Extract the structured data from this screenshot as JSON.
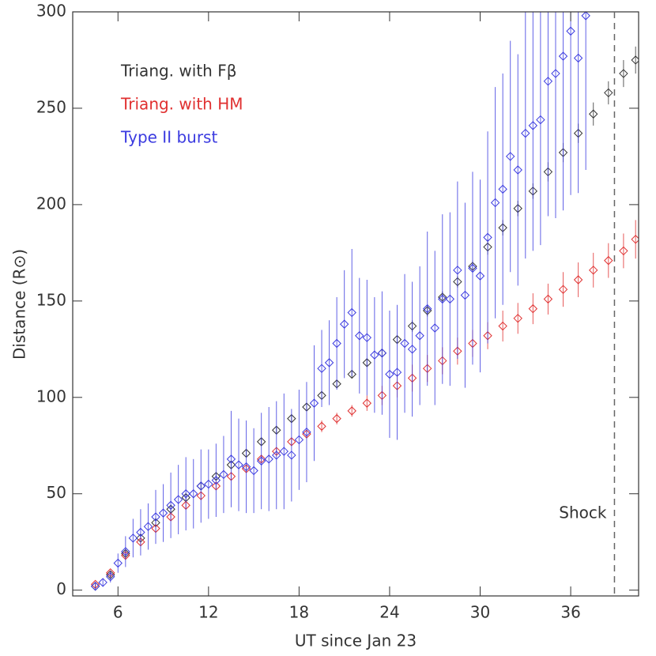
{
  "chart_data": {
    "type": "scatter",
    "xlabel": "UT since Jan 23",
    "ylabel": "Distance (R⊙)",
    "xlim": [
      3,
      40.5
    ],
    "ylim": [
      -3,
      300
    ],
    "xticks": [
      6,
      12,
      18,
      24,
      30,
      36
    ],
    "yticks": [
      0,
      50,
      100,
      150,
      200,
      250,
      300
    ],
    "annotation": {
      "text": "Shock",
      "x": 38.9
    },
    "series": [
      {
        "name": "Triang. with Fβ",
        "color": "#333333",
        "x": [
          4.5,
          5.5,
          6.5,
          7.5,
          8.5,
          9.5,
          10.5,
          11.5,
          12.5,
          13.5,
          14.5,
          15.5,
          16.5,
          17.5,
          18.5,
          19.5,
          20.5,
          21.5,
          22.5,
          23.5,
          24.5,
          25.5,
          26.5,
          27.5,
          28.5,
          29.5,
          30.5,
          31.5,
          32.5,
          33.5,
          34.5,
          35.5,
          36.5,
          37.5,
          38.5,
          39.5,
          40.3
        ],
        "values": [
          2,
          8,
          19,
          27,
          35,
          42,
          48,
          54,
          59,
          65,
          71,
          77,
          83,
          89,
          95,
          101,
          107,
          112,
          118,
          123,
          130,
          137,
          145,
          152,
          160,
          168,
          178,
          188,
          198,
          207,
          217,
          227,
          237,
          247,
          258,
          268,
          275
        ],
        "errors": [
          1,
          2,
          2,
          2,
          2,
          2,
          2,
          2,
          2,
          2,
          2,
          2,
          2,
          2,
          2,
          2,
          2,
          2,
          2,
          2,
          2,
          3,
          3,
          3,
          3,
          3,
          4,
          4,
          4,
          4,
          5,
          5,
          5,
          6,
          6,
          7,
          7
        ]
      },
      {
        "name": "Triang. with HM",
        "color": "#e03030",
        "x": [
          4.5,
          5.5,
          6.5,
          7.5,
          8.5,
          9.5,
          10.5,
          11.5,
          12.5,
          13.5,
          14.5,
          15.5,
          16.5,
          17.5,
          18.5,
          19.5,
          20.5,
          21.5,
          22.5,
          23.5,
          24.5,
          25.5,
          26.5,
          27.5,
          28.5,
          29.5,
          30.5,
          31.5,
          32.5,
          33.5,
          34.5,
          35.5,
          36.5,
          37.5,
          38.5,
          39.5,
          40.3
        ],
        "values": [
          3,
          9,
          18,
          25,
          32,
          38,
          44,
          49,
          54,
          59,
          63,
          68,
          72,
          77,
          81,
          85,
          89,
          93,
          97,
          101,
          106,
          110,
          115,
          119,
          124,
          128,
          132,
          137,
          141,
          146,
          151,
          156,
          161,
          166,
          171,
          176,
          182
        ],
        "errors": [
          1,
          1,
          2,
          2,
          2,
          2,
          2,
          2,
          2,
          2,
          2,
          2,
          2,
          2,
          2,
          3,
          3,
          3,
          4,
          5,
          6,
          7,
          7,
          7,
          7,
          7,
          7,
          8,
          8,
          8,
          8,
          9,
          9,
          9,
          9,
          9,
          10
        ]
      },
      {
        "name": "Type II burst",
        "color": "#3a3ae0",
        "x": [
          4.5,
          5,
          5.5,
          6,
          6.5,
          7,
          7.5,
          8,
          8.5,
          9,
          9.5,
          10,
          10.5,
          11,
          11.5,
          12,
          12.5,
          13,
          13.5,
          14,
          14.5,
          15,
          15.5,
          16,
          16.5,
          17,
          17.5,
          18,
          18.5,
          19,
          19.5,
          20,
          20.5,
          21,
          21.5,
          22,
          22.5,
          23,
          23.5,
          24,
          24.5,
          25,
          25.5,
          26,
          26.5,
          27,
          27.5,
          28,
          28.5,
          29,
          29.5,
          30,
          30.5,
          31,
          31.5,
          32,
          32.5,
          33,
          33.5,
          34,
          34.5,
          35,
          35.5,
          36,
          36.5,
          37
        ],
        "values": [
          2,
          4,
          7,
          14,
          20,
          27,
          30,
          33,
          38,
          40,
          44,
          47,
          50,
          50,
          54,
          55,
          57,
          60,
          68,
          65,
          64,
          62,
          67,
          68,
          70,
          72,
          70,
          78,
          82,
          97,
          115,
          118,
          128,
          138,
          144,
          132,
          131,
          122,
          123,
          112,
          113,
          128,
          125,
          132,
          146,
          136,
          151,
          151,
          166,
          153,
          167,
          163,
          183,
          201,
          208,
          225,
          218,
          237,
          241,
          244,
          264,
          268,
          277,
          290,
          276,
          298
        ],
        "errors": [
          2,
          2,
          3,
          5,
          8,
          10,
          12,
          12,
          14,
          15,
          17,
          18,
          19,
          18,
          19,
          18,
          19,
          20,
          25,
          24,
          24,
          22,
          25,
          27,
          28,
          30,
          24,
          26,
          26,
          30,
          20,
          22,
          24,
          28,
          33,
          30,
          30,
          30,
          32,
          33,
          35,
          36,
          35,
          36,
          40,
          40,
          44,
          45,
          46,
          48,
          50,
          50,
          55,
          60,
          60,
          60,
          60,
          65,
          65,
          65,
          70,
          75,
          80,
          85,
          70,
          80
        ]
      }
    ]
  }
}
